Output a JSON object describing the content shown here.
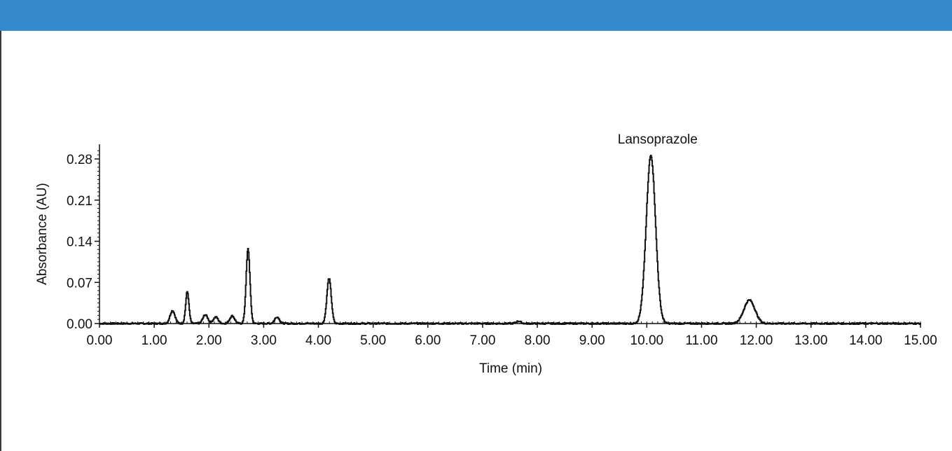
{
  "colors": {
    "header_bar": "#348ACC",
    "trace": "#111111",
    "axis": "#111111",
    "left_rule": "#3a3a3a"
  },
  "chart_data": {
    "type": "line",
    "title": "",
    "xlabel": "Time (min)",
    "ylabel": "Absorbance (AU)",
    "xlim": [
      0,
      15
    ],
    "ylim": [
      0,
      0.3
    ],
    "x_ticks": [
      0,
      1,
      2,
      3,
      4,
      5,
      6,
      7,
      8,
      9,
      10,
      11,
      12,
      13,
      14,
      15
    ],
    "x_tick_labels": [
      "0.00",
      "1.00",
      "2.00",
      "3.00",
      "4.00",
      "5.00",
      "6.00",
      "7.00",
      "8.00",
      "9.00",
      "10.00",
      "11.00",
      "12.00",
      "13.00",
      "14.00",
      "15.00"
    ],
    "y_ticks": [
      0,
      0.07,
      0.14,
      0.21,
      0.28
    ],
    "y_tick_labels": [
      "0.00",
      "0.07",
      "0.14",
      "0.21",
      "0.28"
    ],
    "grid": false,
    "legend": "none",
    "annotations": [
      {
        "text": "Lansoprazole",
        "x": 10.07,
        "y": 0.29
      }
    ],
    "peaks": [
      {
        "rt": 1.33,
        "height": 0.022
      },
      {
        "rt": 1.6,
        "height": 0.054
      },
      {
        "rt": 1.93,
        "height": 0.015
      },
      {
        "rt": 2.12,
        "height": 0.011
      },
      {
        "rt": 2.42,
        "height": 0.013
      },
      {
        "rt": 2.71,
        "height": 0.127
      },
      {
        "rt": 3.24,
        "height": 0.011
      },
      {
        "rt": 4.19,
        "height": 0.077
      },
      {
        "rt": 7.65,
        "height": 0.004
      },
      {
        "rt": 10.07,
        "height": 0.286
      },
      {
        "rt": 11.87,
        "height": 0.04
      }
    ]
  }
}
